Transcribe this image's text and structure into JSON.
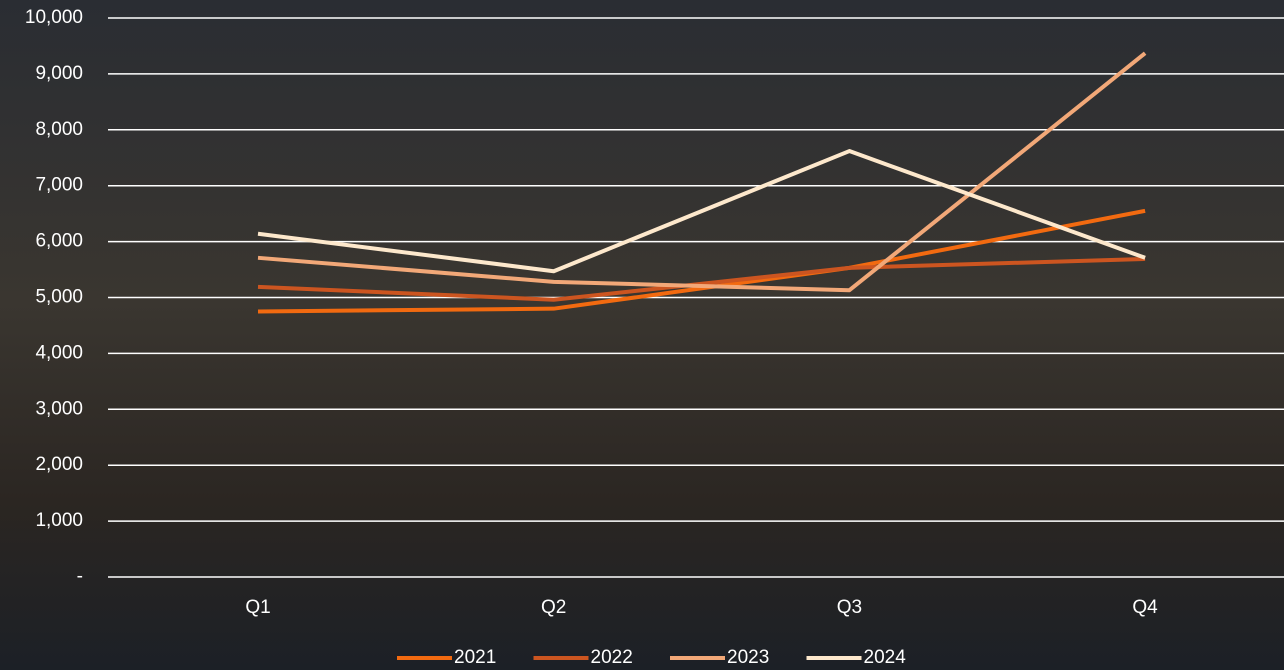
{
  "chart_data": {
    "type": "line",
    "categories": [
      "Q1",
      "Q2",
      "Q3",
      "Q4"
    ],
    "series": [
      {
        "name": "2021",
        "color": "#f26a10",
        "values": [
          4750,
          4800,
          5530,
          6550
        ]
      },
      {
        "name": "2022",
        "color": "#cc5520",
        "values": [
          5190,
          4960,
          5530,
          5690
        ]
      },
      {
        "name": "2023",
        "color": "#f2a878",
        "values": [
          5710,
          5280,
          5130,
          9370
        ]
      },
      {
        "name": "2024",
        "color": "#fde8cc",
        "values": [
          6140,
          5470,
          7620,
          5710
        ]
      }
    ],
    "ylim": [
      0,
      10000
    ],
    "yticks": [
      {
        "value": 0,
        "label": "-"
      },
      {
        "value": 1000,
        "label": "1,000"
      },
      {
        "value": 2000,
        "label": "2,000"
      },
      {
        "value": 3000,
        "label": "3,000"
      },
      {
        "value": 4000,
        "label": "4,000"
      },
      {
        "value": 5000,
        "label": "5,000"
      },
      {
        "value": 6000,
        "label": "6,000"
      },
      {
        "value": 7000,
        "label": "7,000"
      },
      {
        "value": 8000,
        "label": "8,000"
      },
      {
        "value": 9000,
        "label": "9,000"
      },
      {
        "value": 10000,
        "label": "10,000"
      }
    ],
    "grid": true,
    "legend": "bottom"
  }
}
